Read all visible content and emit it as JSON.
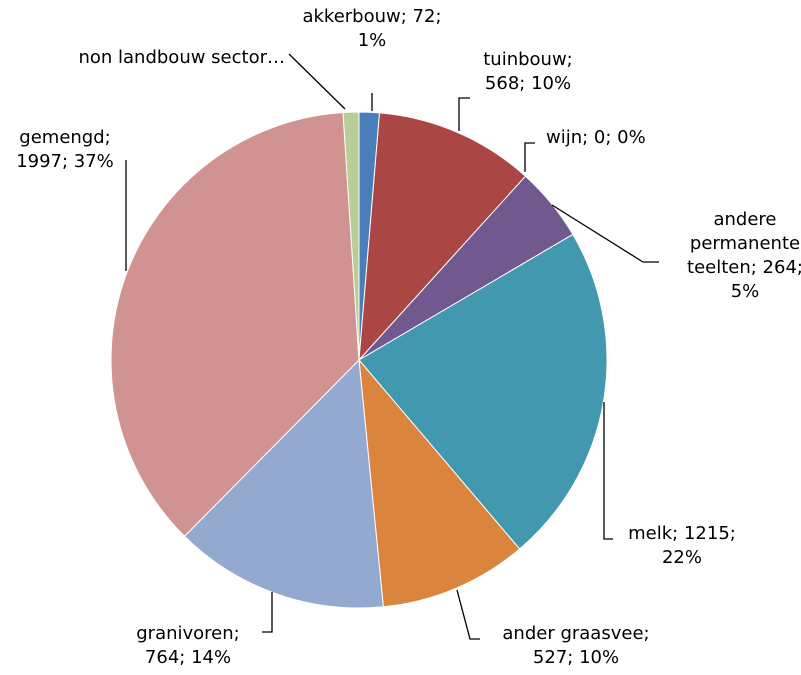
{
  "chart_data": {
    "type": "pie",
    "title": "",
    "legend": "none",
    "start": "top",
    "direction": "clockwise",
    "slices": [
      {
        "name": "akkerbouw",
        "value": 72,
        "percent": "1%",
        "color": "#4a7ebb",
        "label_lines": [
          "akkerbouw; 72;",
          "1%"
        ]
      },
      {
        "name": "tuinbouw",
        "value": 568,
        "percent": "10%",
        "color": "#aa4643",
        "label_lines": [
          "tuinbouw;",
          "568; 10%"
        ]
      },
      {
        "name": "wijn",
        "value": 0,
        "percent": "0%",
        "color": "#89a54e",
        "label_lines": [
          "wijn; 0; 0%"
        ]
      },
      {
        "name": "andere permanente teelten",
        "value": 264,
        "percent": "5%",
        "color": "#71588f",
        "label_lines": [
          "andere",
          "permanente",
          "teelten; 264;",
          "5%"
        ]
      },
      {
        "name": "melk",
        "value": 1215,
        "percent": "22%",
        "color": "#4198af",
        "label_lines": [
          "melk; 1215;",
          "22%"
        ]
      },
      {
        "name": "ander graasvee",
        "value": 527,
        "percent": "10%",
        "color": "#db843d",
        "label_lines": [
          "ander graasvee;",
          "527; 10%"
        ]
      },
      {
        "name": "granivoren",
        "value": 764,
        "percent": "14%",
        "color": "#93a9cf",
        "label_lines": [
          "granivoren;",
          "764; 14%"
        ]
      },
      {
        "name": "gemengd",
        "value": 1997,
        "percent": "37%",
        "color": "#d19392",
        "label_lines": [
          "gemengd;",
          "1997; 37%"
        ]
      },
      {
        "name": "non landbouw sector",
        "value": 56,
        "percent": "",
        "color": "#b9cd96",
        "label_lines": [
          "non landbouw sector…"
        ]
      }
    ]
  }
}
